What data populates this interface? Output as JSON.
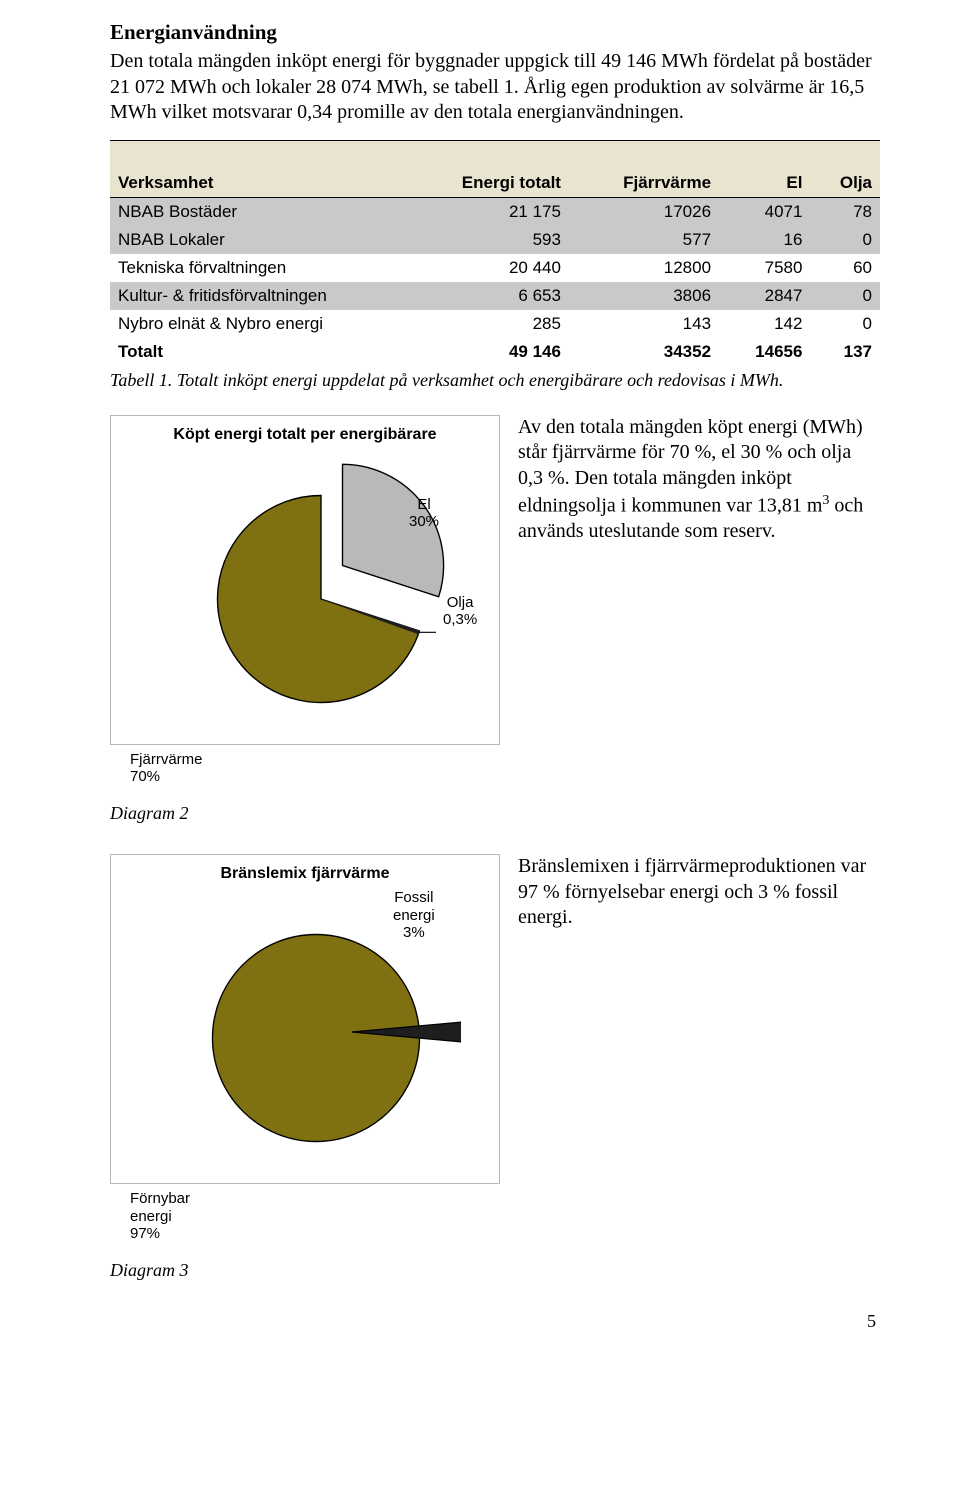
{
  "heading": "Energianvändning",
  "intro_paragraph": "Den totala mängden inköpt energi för byggnader uppgick till 49 146 MWh fördelat på bostäder 21 072 MWh och lokaler 28 074 MWh, se tabell 1. Årlig egen produktion av solvärme är 16,5 MWh vilket motsvarar 0,34 promille av den totala energianvändningen.",
  "table": {
    "headers": [
      "Verksamhet",
      "Energi totalt",
      "Fjärrvärme",
      "El",
      "Olja"
    ],
    "rows": [
      {
        "cells": [
          "NBAB Bostäder",
          "21 175",
          "17026",
          "4071",
          "78"
        ],
        "shade": true
      },
      {
        "cells": [
          "NBAB Lokaler",
          "593",
          "577",
          "16",
          "0"
        ],
        "shade": true
      },
      {
        "cells": [
          "Tekniska förvaltningen",
          "20 440",
          "12800",
          "7580",
          "60"
        ],
        "shade": false
      },
      {
        "cells": [
          "Kultur- & fritidsförvaltningen",
          "6 653",
          "3806",
          "2847",
          "0"
        ],
        "shade": true
      },
      {
        "cells": [
          "Nybro elnät & Nybro energi",
          "285",
          "143",
          "142",
          "0"
        ],
        "shade": false
      },
      {
        "cells": [
          "Totalt",
          "49 146",
          "34352",
          "14656",
          "137"
        ],
        "shade": false,
        "total": true
      }
    ],
    "caption": "Tabell 1. Totalt inköpt energi uppdelat på verksamhet och energibärare och redovisas i MWh."
  },
  "chart1": {
    "title": "Köpt energi totalt per energibärare",
    "type": "pie",
    "colors": {
      "fjarrvarme": "#7f7012",
      "el": "#b9b9b9",
      "olja": "#1f1f1f"
    },
    "slices": [
      {
        "label": "Fjärrvärme",
        "percent_label": "70%",
        "value": 70,
        "color": "#7f7012"
      },
      {
        "label": "El",
        "percent_label": "30%",
        "value": 30,
        "color": "#b9b9b9"
      },
      {
        "label": "Olja",
        "percent_label": "0,3%",
        "value": 0.3,
        "color": "#1f1f1f"
      }
    ],
    "exploded_slice_index": 1,
    "ext_label_fj_line1": "Fjärrvärme",
    "ext_label_fj_line2": "70%",
    "label_el_line1": "El",
    "label_el_line2": "30%",
    "label_olja_line1": "Olja",
    "label_olja_line2": "0,3%",
    "side_text_html": "Av den totala mängden köpt energi (MWh) står fjärrvärme för 70 %, el 30 % och olja 0,3 %. Den totala mängden inköpt eldningsolja i kommunen var 13,81 m³ och används uteslutande som reserv.",
    "caption": "Diagram 2"
  },
  "chart2": {
    "title": "Bränslemix fjärrvärme",
    "type": "pie",
    "colors": {
      "fornybar": "#7f7012",
      "fossil": "#1e1e1e"
    },
    "slices": [
      {
        "label": "Förnybar energi",
        "percent_label": "97%",
        "value": 97,
        "color": "#7f7012"
      },
      {
        "label": "Fossil energi",
        "percent_label": "3%",
        "value": 3,
        "color": "#1e1e1e"
      }
    ],
    "exploded_slice_index": 1,
    "label_fossil_line1": "Fossil",
    "label_fossil_line2": "energi",
    "label_fossil_line3": "3%",
    "ext_label_forn_line1": "Förnybar",
    "ext_label_forn_line2": "energi",
    "ext_label_forn_line3": "97%",
    "side_text_html": "Bränslemixen i fjärrvärmeproduktionen var 97 % förnyelsebar energi och 3 % fossil energi.",
    "caption": "Diagram 3"
  },
  "page_number": "5"
}
